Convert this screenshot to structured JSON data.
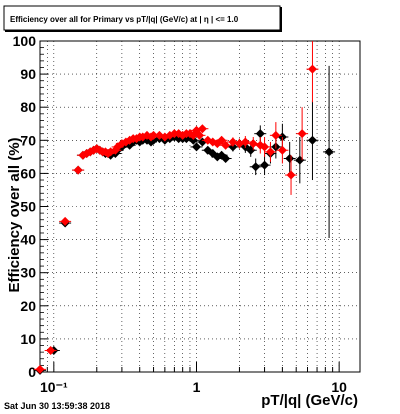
{
  "chart_data": {
    "type": "scatter",
    "title": "Efficiency over all for Primary vs pT/|q| (GeV/c) at | η | <= 1.0",
    "xlabel": "pT/|q| (GeV/c)",
    "ylabel": "Efficiency over all (%)",
    "x_scale": "log",
    "xlim": [
      0.08,
      14
    ],
    "ylim": [
      0,
      100
    ],
    "grid": true,
    "x_ticks": [
      {
        "value": 0.1,
        "label": "10⁻¹"
      },
      {
        "value": 1,
        "label": "1"
      },
      {
        "value": 10,
        "label": "10"
      }
    ],
    "y_ticks": [
      0,
      10,
      20,
      30,
      40,
      50,
      60,
      70,
      80,
      90,
      100
    ],
    "series": [
      {
        "color": "#000000",
        "points": [
          {
            "x": 0.08,
            "y": 0.5,
            "e": 0.6
          },
          {
            "x": 0.1,
            "y": 6.5,
            "e": 0.8
          },
          {
            "x": 0.12,
            "y": 45,
            "e": 1
          },
          {
            "x": 0.148,
            "y": 61,
            "e": 1
          },
          {
            "x": 0.16,
            "y": 65.5,
            "e": 0.8
          },
          {
            "x": 0.17,
            "y": 66,
            "e": 0.8
          },
          {
            "x": 0.18,
            "y": 66.5,
            "e": 0.8
          },
          {
            "x": 0.19,
            "y": 67,
            "e": 0.8
          },
          {
            "x": 0.2,
            "y": 67.5,
            "e": 0.8
          },
          {
            "x": 0.21,
            "y": 67,
            "e": 0.8
          },
          {
            "x": 0.22,
            "y": 66.5,
            "e": 0.8
          },
          {
            "x": 0.23,
            "y": 66,
            "e": 0.8
          },
          {
            "x": 0.24,
            "y": 66,
            "e": 0.8
          },
          {
            "x": 0.25,
            "y": 65.5,
            "e": 0.8
          },
          {
            "x": 0.27,
            "y": 66,
            "e": 0.8
          },
          {
            "x": 0.28,
            "y": 67,
            "e": 0.8
          },
          {
            "x": 0.3,
            "y": 68,
            "e": 0.8
          },
          {
            "x": 0.32,
            "y": 69,
            "e": 0.8
          },
          {
            "x": 0.34,
            "y": 68.5,
            "e": 0.8
          },
          {
            "x": 0.36,
            "y": 69.5,
            "e": 0.8
          },
          {
            "x": 0.38,
            "y": 70,
            "e": 0.8
          },
          {
            "x": 0.4,
            "y": 69.5,
            "e": 0.8
          },
          {
            "x": 0.42,
            "y": 70,
            "e": 0.8
          },
          {
            "x": 0.45,
            "y": 70,
            "e": 0.8
          },
          {
            "x": 0.48,
            "y": 69.5,
            "e": 0.8
          },
          {
            "x": 0.5,
            "y": 70,
            "e": 0.8
          },
          {
            "x": 0.55,
            "y": 70.5,
            "e": 0.8
          },
          {
            "x": 0.6,
            "y": 70,
            "e": 0.8
          },
          {
            "x": 0.65,
            "y": 70.5,
            "e": 0.8
          },
          {
            "x": 0.7,
            "y": 71,
            "e": 0.8
          },
          {
            "x": 0.75,
            "y": 70.5,
            "e": 0.8
          },
          {
            "x": 0.8,
            "y": 70.5,
            "e": 0.8
          },
          {
            "x": 0.85,
            "y": 70.5,
            "e": 0.8
          },
          {
            "x": 0.9,
            "y": 71,
            "e": 0.8
          },
          {
            "x": 0.95,
            "y": 70,
            "e": 0.8
          },
          {
            "x": 1.0,
            "y": 68,
            "e": 1
          },
          {
            "x": 1.1,
            "y": 69.5,
            "e": 1
          },
          {
            "x": 1.2,
            "y": 67,
            "e": 1
          },
          {
            "x": 1.3,
            "y": 66,
            "e": 1
          },
          {
            "x": 1.4,
            "y": 65,
            "e": 1
          },
          {
            "x": 1.5,
            "y": 65.5,
            "e": 1.2
          },
          {
            "x": 1.6,
            "y": 64.5,
            "e": 1.2
          },
          {
            "x": 1.8,
            "y": 68,
            "e": 1.4
          },
          {
            "x": 2.0,
            "y": 69,
            "e": 1.5
          },
          {
            "x": 2.2,
            "y": 68,
            "e": 1.8
          },
          {
            "x": 2.4,
            "y": 67,
            "e": 2
          },
          {
            "x": 2.6,
            "y": 62,
            "e": 2.5
          },
          {
            "x": 2.8,
            "y": 72,
            "e": 2.5
          },
          {
            "x": 3.0,
            "y": 62.5,
            "e": 3
          },
          {
            "x": 3.3,
            "y": 66,
            "e": 3
          },
          {
            "x": 3.6,
            "y": 68,
            "e": 3.5
          },
          {
            "x": 4.0,
            "y": 71,
            "e": 4
          },
          {
            "x": 4.5,
            "y": 64.5,
            "e": 5
          },
          {
            "x": 5.3,
            "y": 64,
            "e": 7
          },
          {
            "x": 6.5,
            "y": 70,
            "e": 12
          },
          {
            "x": 8.5,
            "y": 66.5,
            "e": 26
          }
        ]
      },
      {
        "color": "#ff0000",
        "points": [
          {
            "x": 0.08,
            "y": 0.8,
            "e": 0.6
          },
          {
            "x": 0.095,
            "y": 6.5,
            "e": 0.8
          },
          {
            "x": 0.12,
            "y": 45.5,
            "e": 1
          },
          {
            "x": 0.148,
            "y": 61,
            "e": 1
          },
          {
            "x": 0.16,
            "y": 65.5,
            "e": 0.8
          },
          {
            "x": 0.17,
            "y": 66,
            "e": 0.8
          },
          {
            "x": 0.18,
            "y": 66.5,
            "e": 0.8
          },
          {
            "x": 0.19,
            "y": 67,
            "e": 0.8
          },
          {
            "x": 0.2,
            "y": 67.5,
            "e": 0.8
          },
          {
            "x": 0.21,
            "y": 67,
            "e": 0.8
          },
          {
            "x": 0.22,
            "y": 66.5,
            "e": 0.8
          },
          {
            "x": 0.23,
            "y": 66.5,
            "e": 0.8
          },
          {
            "x": 0.24,
            "y": 66,
            "e": 0.8
          },
          {
            "x": 0.25,
            "y": 66.5,
            "e": 0.8
          },
          {
            "x": 0.27,
            "y": 67,
            "e": 0.8
          },
          {
            "x": 0.28,
            "y": 68,
            "e": 0.8
          },
          {
            "x": 0.3,
            "y": 69,
            "e": 0.8
          },
          {
            "x": 0.32,
            "y": 69.5,
            "e": 0.8
          },
          {
            "x": 0.34,
            "y": 70,
            "e": 0.8
          },
          {
            "x": 0.36,
            "y": 70.5,
            "e": 0.8
          },
          {
            "x": 0.38,
            "y": 70.5,
            "e": 0.8
          },
          {
            "x": 0.4,
            "y": 71,
            "e": 0.8
          },
          {
            "x": 0.42,
            "y": 71,
            "e": 0.8
          },
          {
            "x": 0.45,
            "y": 71.5,
            "e": 0.8
          },
          {
            "x": 0.48,
            "y": 71,
            "e": 0.8
          },
          {
            "x": 0.5,
            "y": 71.5,
            "e": 0.8
          },
          {
            "x": 0.55,
            "y": 71.5,
            "e": 0.8
          },
          {
            "x": 0.6,
            "y": 71,
            "e": 0.8
          },
          {
            "x": 0.65,
            "y": 71.5,
            "e": 0.8
          },
          {
            "x": 0.7,
            "y": 72,
            "e": 0.8
          },
          {
            "x": 0.75,
            "y": 72,
            "e": 0.8
          },
          {
            "x": 0.8,
            "y": 71.5,
            "e": 0.8
          },
          {
            "x": 0.85,
            "y": 72,
            "e": 0.8
          },
          {
            "x": 0.9,
            "y": 72,
            "e": 0.8
          },
          {
            "x": 0.95,
            "y": 71.5,
            "e": 0.8
          },
          {
            "x": 1.0,
            "y": 73,
            "e": 1
          },
          {
            "x": 1.05,
            "y": 71.5,
            "e": 1
          },
          {
            "x": 1.1,
            "y": 73.5,
            "e": 1
          },
          {
            "x": 1.2,
            "y": 70,
            "e": 1
          },
          {
            "x": 1.3,
            "y": 69.5,
            "e": 1
          },
          {
            "x": 1.4,
            "y": 69,
            "e": 1
          },
          {
            "x": 1.5,
            "y": 70,
            "e": 1.2
          },
          {
            "x": 1.6,
            "y": 68.5,
            "e": 1.2
          },
          {
            "x": 1.8,
            "y": 69.5,
            "e": 1.4
          },
          {
            "x": 2.0,
            "y": 69,
            "e": 1.5
          },
          {
            "x": 2.2,
            "y": 69.5,
            "e": 1.8
          },
          {
            "x": 2.5,
            "y": 69,
            "e": 2
          },
          {
            "x": 2.8,
            "y": 68.5,
            "e": 2.5
          },
          {
            "x": 3.0,
            "y": 68,
            "e": 3
          },
          {
            "x": 3.3,
            "y": 66.5,
            "e": 3
          },
          {
            "x": 3.6,
            "y": 71.5,
            "e": 4
          },
          {
            "x": 4.0,
            "y": 67,
            "e": 4
          },
          {
            "x": 4.6,
            "y": 59.5,
            "e": 6
          },
          {
            "x": 5.5,
            "y": 72,
            "e": 8
          },
          {
            "x": 6.5,
            "y": 91.5,
            "e": 10
          }
        ]
      }
    ]
  },
  "footer": {
    "timestamp": "Sat Jun 30 13:59:38 2018"
  }
}
